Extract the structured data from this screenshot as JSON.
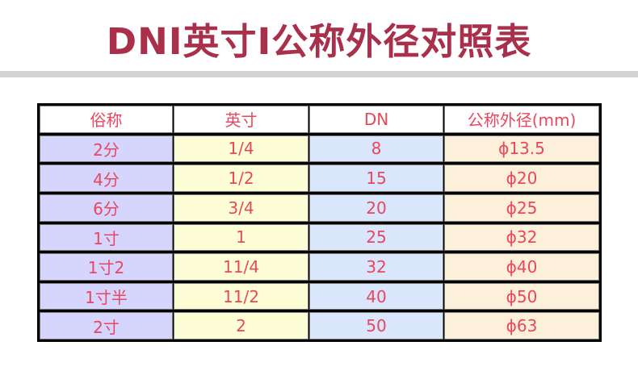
{
  "title": "DNI英寸I公称外径对照表",
  "table": {
    "headers": [
      "俗称",
      "英寸",
      "DN",
      "公称外径(mm)"
    ],
    "rows": [
      [
        "2分",
        "1/4",
        "8",
        "ϕ13.5"
      ],
      [
        "4分",
        "1/2",
        "15",
        "ϕ20"
      ],
      [
        "6分",
        "3/4",
        "20",
        "ϕ25"
      ],
      [
        "1寸",
        "1",
        "25",
        "ϕ32"
      ],
      [
        "1寸2",
        "11/4",
        "32",
        "ϕ40"
      ],
      [
        "1寸半",
        "11/2",
        "40",
        "ϕ50"
      ],
      [
        "2寸",
        "2",
        "50",
        "ϕ63"
      ]
    ]
  },
  "colors": {
    "title": "#a8304a",
    "text": "#e8475e",
    "col1": "#d5d5fd",
    "col2": "#fefed6",
    "col3": "#d9e6fb",
    "col4": "#fdf0da"
  }
}
